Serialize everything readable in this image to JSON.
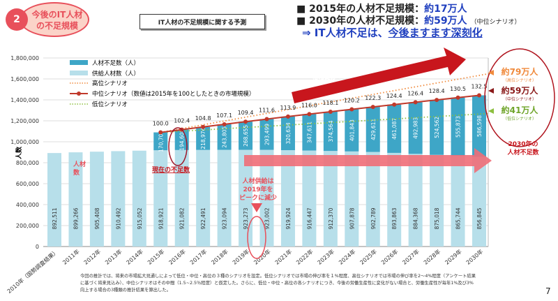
{
  "header": {
    "section_number": "2",
    "section_title_line1": "今後のIT人材",
    "section_title_line2": "の不足規模",
    "chart_box_title": "IT人材の不足規模に関する予測",
    "headline1_prefix": "■ 2015年の人材不足規模：",
    "headline1_value": "約17万人",
    "headline2_prefix": "■ 2030年の人材不足規模：",
    "headline2_value": "約59万人",
    "headline2_note": "（中位シナリオ）",
    "conclusion_prefix": "⇒ IT人材不足は、",
    "conclusion_emph": "今後ますます深刻化"
  },
  "colors": {
    "shortage": "#3ea6c7",
    "supply": "#b7dfea",
    "middle": "#c0392b",
    "high": "#f08a3c",
    "low": "#8dbf3f",
    "accent_red": "#e8505b"
  },
  "chart_data": {
    "type": "bar",
    "stacked": true,
    "ylabel": "人数",
    "ylim": [
      0,
      1800000
    ],
    "yticks": [
      "0",
      "200,000",
      "400,000",
      "600,000",
      "800,000",
      "1,000,000",
      "1,200,000",
      "1,400,000",
      "1,600,000",
      "1,800,000"
    ],
    "grid": true,
    "legend_position": "top-left",
    "categories": [
      "2010年（国勢調査結果）",
      "2011年",
      "2012年",
      "2013年",
      "2014年",
      "2015年",
      "2016年",
      "2017年",
      "2018年",
      "2019年",
      "2020年",
      "2021年",
      "2022年",
      "2023年",
      "2024年",
      "2025年",
      "2026年",
      "2027年",
      "2028年",
      "2029年",
      "2030年"
    ],
    "series": [
      {
        "name": "供給人材数（人）",
        "values": [
          892511,
          899266,
          905408,
          910492,
          915052,
          918921,
          921082,
          922491,
          923094,
          923273,
          923002,
          919924,
          916447,
          912370,
          907878,
          902789,
          893863,
          884368,
          875018,
          865744,
          856845
        ],
        "labels": [
          "892,511",
          "899,266",
          "905,408",
          "910,492",
          "915,052",
          "918,921",
          "921,082",
          "922,491",
          "923,094",
          "923,273",
          "923,002",
          "919,924",
          "916,447",
          "912,370",
          "907,878",
          "902,789",
          "893,863",
          "884,368",
          "875,018",
          "865,744",
          "856,845"
        ]
      },
      {
        "name": "人材不足数（人）",
        "values": [
          null,
          null,
          null,
          null,
          null,
          170700,
          194608,
          218976,
          243805,
          268655,
          293499,
          320638,
          347611,
          374564,
          401843,
          429611,
          461087,
          492983,
          524562,
          555873,
          586598
        ],
        "labels": [
          "",
          "",
          "",
          "",
          "",
          "170,700",
          "194,608",
          "218,976",
          "243,805",
          "268,655",
          "293,499",
          "320,638",
          "347,611",
          "374,564",
          "401,843",
          "429,611",
          "461,087",
          "492,983",
          "524,562",
          "555,873",
          "586,598"
        ]
      }
    ],
    "lines": [
      {
        "name": "高位シナリオ",
        "style": "dotted",
        "endpoints": [
          [
            2015,
            1089621
          ],
          [
            2030,
            1650000
          ]
        ]
      },
      {
        "name": "中位シナリオ（数値は2015年を100としたときの市場規模）",
        "style": "solid-markers",
        "index_labels": [
          "100.0",
          "102.4",
          "104.8",
          "107.1",
          "109.4",
          "111.6",
          "113.9",
          "116.0",
          "118.1",
          "120.2",
          "122.3",
          "124.4",
          "126.4",
          "128.4",
          "130.5",
          "132.5"
        ]
      },
      {
        "name": "低位シナリオ",
        "style": "dotted",
        "endpoints": [
          [
            2015,
            1089621
          ],
          [
            2030,
            1270000
          ]
        ]
      }
    ],
    "annotations": {
      "market_arrow": "ITニーズの拡大により\n市場規模は今後も拡大",
      "current_shortage": "現在の不足数",
      "supply_peak_1": "人材供給は",
      "supply_peak_2": "2019年を",
      "supply_peak_3": "ピークに減少",
      "supply_label_1": "人材",
      "supply_label_2": "数",
      "high_value": "約79万人",
      "high_note": "（高位シナリオ）",
      "mid_value": "約59万人",
      "mid_note": "（中位シナリオ）",
      "low_value": "約41万人",
      "low_note": "（低位シナリオ）",
      "shortage_2030_1": "2030年の",
      "shortage_2030_2": "人材不足数"
    }
  },
  "footnote": "今回の推計では、将来の市場拡大見通しによって低位・中位・高位の３種のシナリオを設定。低位シナリオでは市場の伸び率を１%程度、高位シナリオでは市場の伸び率を2～4%程度（アンケート結果に基づく将来見込み）、中位シナリオはその中間（1.5~2.5％程度）と仮定した。さらに、低位・中位・高位の各シナリオにつき、今後の労働生産性に変化がない場合と、労働生産性が毎年1%及び3%向上する場合の3種類の推計結果を算出した。",
  "page_number": "7"
}
